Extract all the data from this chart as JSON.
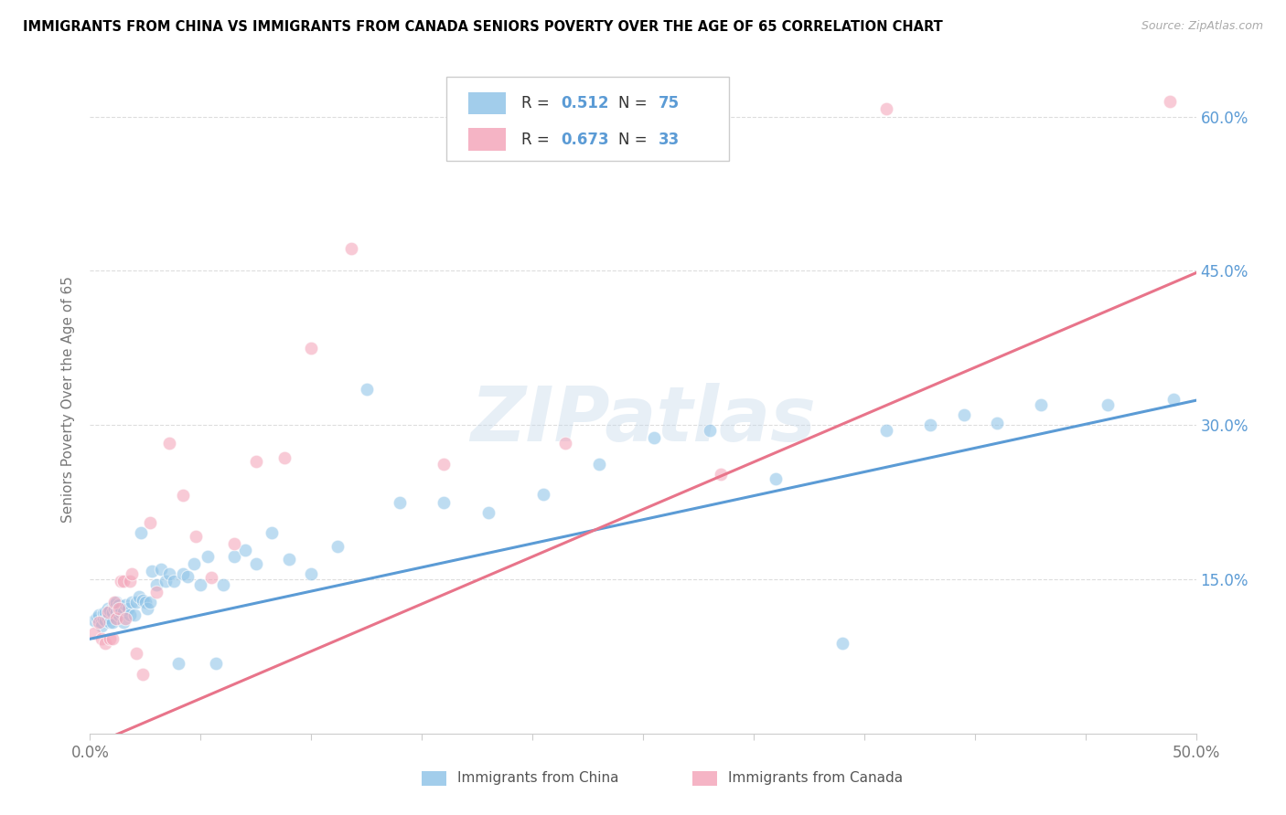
{
  "title": "IMMIGRANTS FROM CHINA VS IMMIGRANTS FROM CANADA SENIORS POVERTY OVER THE AGE OF 65 CORRELATION CHART",
  "source": "Source: ZipAtlas.com",
  "ylabel": "Seniors Poverty Over the Age of 65",
  "xlim": [
    0.0,
    0.5
  ],
  "ylim": [
    0.0,
    0.65
  ],
  "china_color": "#92c5e8",
  "canada_color": "#f4a7bb",
  "china_line_color": "#5b9bd5",
  "canada_line_color": "#e8748a",
  "R_china": 0.512,
  "N_china": 75,
  "R_canada": 0.673,
  "N_canada": 33,
  "legend_label_china": "Immigrants from China",
  "legend_label_canada": "Immigrants from Canada",
  "watermark": "ZIPatlas",
  "blue_text_color": "#5b9bd5",
  "axis_label_color": "#777777",
  "grid_color": "#dddddd",
  "china_line_intercept": 0.092,
  "china_line_slope": 0.464,
  "canada_line_intercept": -0.012,
  "canada_line_slope": 0.92,
  "china_x": [
    0.002,
    0.003,
    0.004,
    0.005,
    0.005,
    0.006,
    0.006,
    0.007,
    0.007,
    0.008,
    0.008,
    0.009,
    0.009,
    0.01,
    0.01,
    0.011,
    0.011,
    0.012,
    0.012,
    0.013,
    0.013,
    0.014,
    0.014,
    0.015,
    0.015,
    0.016,
    0.017,
    0.018,
    0.019,
    0.02,
    0.021,
    0.022,
    0.023,
    0.024,
    0.025,
    0.026,
    0.027,
    0.028,
    0.03,
    0.032,
    0.034,
    0.036,
    0.038,
    0.04,
    0.042,
    0.044,
    0.047,
    0.05,
    0.053,
    0.057,
    0.06,
    0.065,
    0.07,
    0.075,
    0.082,
    0.09,
    0.1,
    0.112,
    0.125,
    0.14,
    0.16,
    0.18,
    0.205,
    0.23,
    0.255,
    0.28,
    0.31,
    0.34,
    0.36,
    0.38,
    0.395,
    0.41,
    0.43,
    0.46,
    0.49
  ],
  "china_y": [
    0.11,
    0.113,
    0.115,
    0.108,
    0.105,
    0.112,
    0.117,
    0.11,
    0.118,
    0.113,
    0.122,
    0.108,
    0.12,
    0.118,
    0.108,
    0.125,
    0.122,
    0.118,
    0.128,
    0.115,
    0.125,
    0.118,
    0.122,
    0.118,
    0.108,
    0.125,
    0.122,
    0.115,
    0.128,
    0.115,
    0.128,
    0.133,
    0.195,
    0.13,
    0.128,
    0.122,
    0.128,
    0.158,
    0.145,
    0.16,
    0.148,
    0.155,
    0.148,
    0.068,
    0.155,
    0.153,
    0.165,
    0.145,
    0.172,
    0.068,
    0.145,
    0.172,
    0.178,
    0.165,
    0.195,
    0.17,
    0.155,
    0.182,
    0.335,
    0.225,
    0.225,
    0.215,
    0.233,
    0.262,
    0.288,
    0.295,
    0.248,
    0.088,
    0.295,
    0.3,
    0.31,
    0.302,
    0.32,
    0.32,
    0.325
  ],
  "canada_x": [
    0.002,
    0.004,
    0.005,
    0.007,
    0.008,
    0.009,
    0.01,
    0.011,
    0.012,
    0.013,
    0.014,
    0.015,
    0.016,
    0.018,
    0.019,
    0.021,
    0.024,
    0.027,
    0.03,
    0.036,
    0.042,
    0.048,
    0.055,
    0.065,
    0.075,
    0.088,
    0.1,
    0.118,
    0.16,
    0.215,
    0.285,
    0.36,
    0.488
  ],
  "canada_y": [
    0.098,
    0.108,
    0.092,
    0.088,
    0.118,
    0.092,
    0.092,
    0.128,
    0.112,
    0.122,
    0.148,
    0.148,
    0.112,
    0.148,
    0.155,
    0.078,
    0.058,
    0.205,
    0.138,
    0.282,
    0.232,
    0.192,
    0.152,
    0.185,
    0.265,
    0.268,
    0.375,
    0.472,
    0.262,
    0.282,
    0.252,
    0.608,
    0.615
  ]
}
